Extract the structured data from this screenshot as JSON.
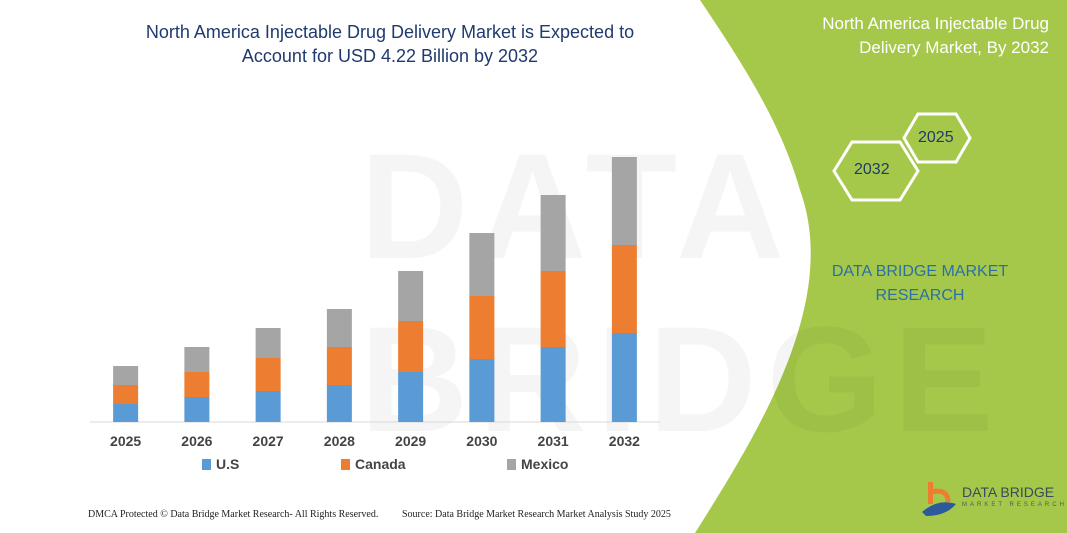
{
  "title": "North America Injectable Drug Delivery Market is Expected to Account for USD 4.22 Billion by 2032",
  "side_panel": {
    "title": "North America Injectable Drug Delivery Market, By 2032",
    "hex_labels": [
      "2025",
      "2032"
    ],
    "brand": "DATA BRIDGE MARKET RESEARCH"
  },
  "logo": {
    "name": "DATA BRIDGE",
    "sub": "MARKET RESEARCH"
  },
  "watermark": "DATA BRIDGE",
  "footer": {
    "left": "DMCA Protected © Data Bridge Market Research- All Rights Reserved.",
    "right": "Source: Data Bridge Market Research Market Analysis Study 2025"
  },
  "colors": {
    "green": "#a5c84a",
    "us": "#5b9bd5",
    "canada": "#ed7d31",
    "mexico": "#a5a5a5",
    "title": "#1f3a6e"
  },
  "chart_data": {
    "type": "bar",
    "stacked": true,
    "categories": [
      "2025",
      "2026",
      "2027",
      "2028",
      "2029",
      "2030",
      "2031",
      "2032"
    ],
    "series": [
      {
        "name": "U.S",
        "values": [
          18,
          25,
          31,
          37,
          50,
          63,
          75,
          89
        ]
      },
      {
        "name": "Canada",
        "values": [
          19,
          25,
          33,
          38,
          51,
          63,
          76,
          88
        ]
      },
      {
        "name": "Mexico",
        "values": [
          19,
          25,
          30,
          38,
          50,
          63,
          76,
          88
        ]
      }
    ],
    "yaxis_visible": false,
    "grid": false,
    "legend": "bottom"
  }
}
